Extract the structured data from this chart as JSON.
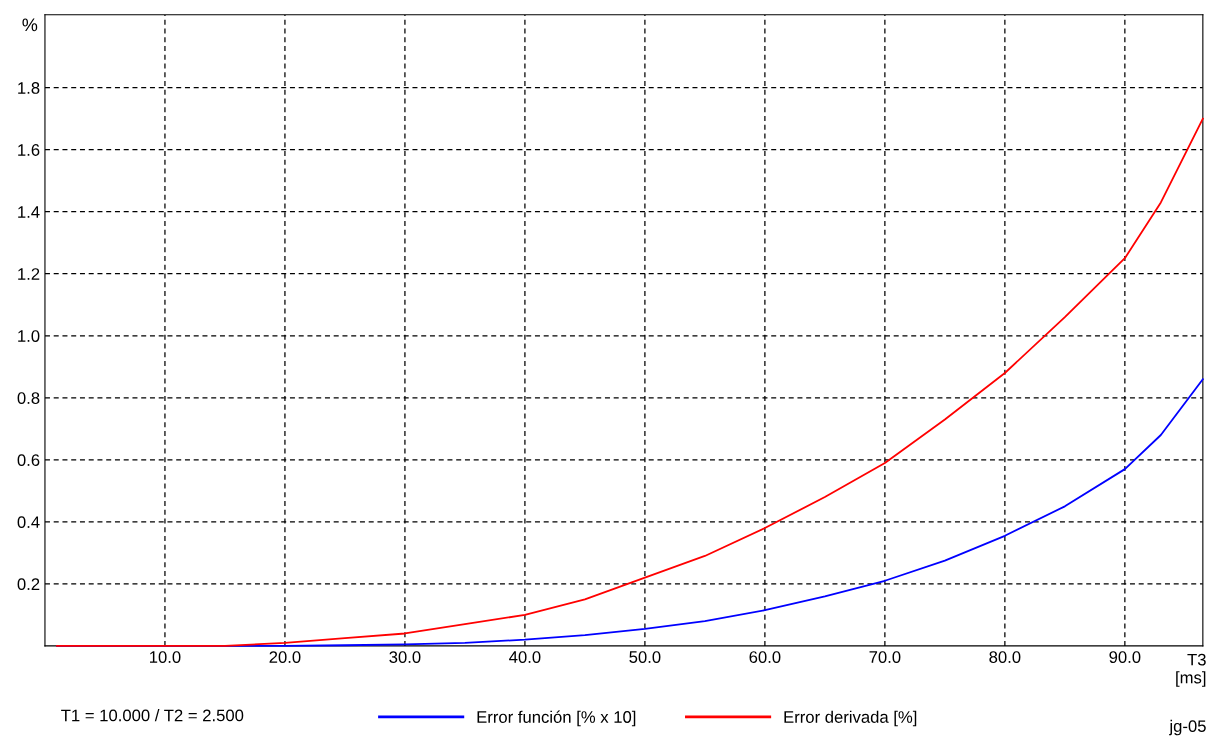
{
  "chart_data": {
    "type": "line",
    "ylabel": "%",
    "xlabel": "T3\n[ms]",
    "annotations": [
      "T1 = 10.000 / T2 = 2.500",
      "jg-05"
    ],
    "series": [
      {
        "name": "Error función [% x 10]",
        "color": "#0000ff",
        "x": [
          1,
          10,
          20,
          25,
          30,
          35,
          40,
          45,
          50,
          55,
          60,
          65,
          70,
          75,
          80,
          85,
          90,
          93,
          96.5
        ],
        "values": [
          0,
          0,
          0,
          0.002,
          0.005,
          0.01,
          0.02,
          0.035,
          0.055,
          0.08,
          0.115,
          0.16,
          0.21,
          0.275,
          0.355,
          0.45,
          0.57,
          0.68,
          0.86
        ]
      },
      {
        "name": "Error derivada [%]",
        "color": "#ff0000",
        "x": [
          1,
          10,
          15,
          20,
          25,
          30,
          35,
          40,
          45,
          50,
          55,
          60,
          65,
          70,
          75,
          80,
          85,
          90,
          93,
          96.5
        ],
        "values": [
          0,
          0,
          0,
          0.01,
          0.025,
          0.04,
          0.07,
          0.1,
          0.15,
          0.22,
          0.29,
          0.38,
          0.48,
          0.59,
          0.73,
          0.88,
          1.06,
          1.25,
          1.43,
          1.7
        ]
      }
    ],
    "xlim": [
      0,
      96.5
    ],
    "ylim": [
      0,
      2.035
    ],
    "xticks": [
      {
        "value": 10,
        "label": "10.0"
      },
      {
        "value": 20,
        "label": "20.0"
      },
      {
        "value": 30,
        "label": "30.0"
      },
      {
        "value": 40,
        "label": "40.0"
      },
      {
        "value": 50,
        "label": "50.0"
      },
      {
        "value": 60,
        "label": "60.0"
      },
      {
        "value": 70,
        "label": "70.0"
      },
      {
        "value": 80,
        "label": "80.0"
      },
      {
        "value": 90,
        "label": "90.0"
      }
    ],
    "yticks": [
      0.2,
      0.4,
      0.6,
      0.8,
      {
        "value": 1.0,
        "label": "1.0"
      },
      1.2,
      1.4,
      1.6,
      1.8
    ],
    "grid": true,
    "legend": "bottom",
    "line_style": "solid",
    "marker": "none"
  }
}
